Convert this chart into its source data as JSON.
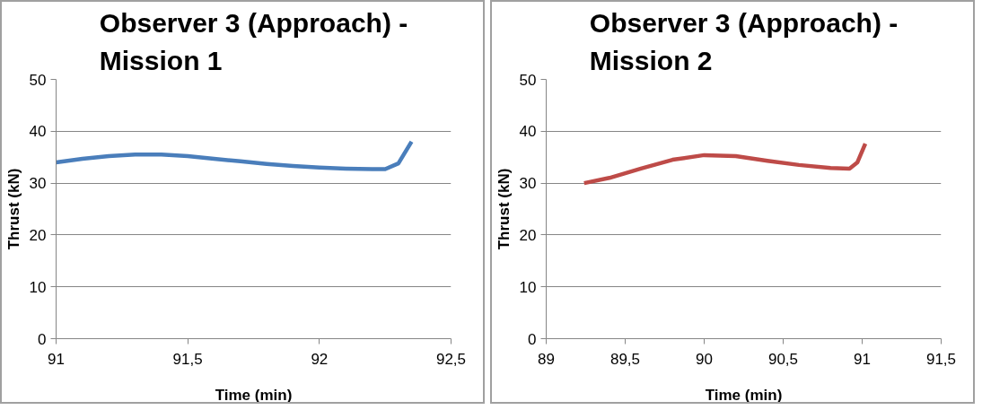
{
  "chart_data": [
    {
      "type": "line",
      "title": "Observer 3 (Approach) - Mission 1",
      "xlabel": "Time (min)",
      "ylabel": "Thrust (kN)",
      "xlim": [
        91,
        92.5
      ],
      "xticks": [
        {
          "value": 91,
          "label": "91"
        },
        {
          "value": 91.5,
          "label": "91,5"
        },
        {
          "value": 92,
          "label": "92"
        },
        {
          "value": 92.5,
          "label": "92,5"
        }
      ],
      "ylim": [
        0,
        50
      ],
      "yticks": [
        0,
        10,
        20,
        30,
        40,
        50
      ],
      "grid": "y",
      "marker": "none",
      "line_style": "solid",
      "series": [
        {
          "color": "#4a7ebb",
          "x": [
            91,
            91.1,
            91.2,
            91.3,
            91.4,
            91.5,
            91.6,
            91.7,
            91.8,
            91.9,
            92,
            92.1,
            92.2,
            92.25,
            92.3,
            92.35
          ],
          "values": [
            34,
            34.7,
            35.2,
            35.5,
            35.5,
            35.2,
            34.7,
            34.2,
            33.7,
            33.3,
            33,
            32.8,
            32.7,
            32.7,
            33.8,
            38
          ]
        }
      ]
    },
    {
      "type": "line",
      "title": "Observer 3 (Approach) - Mission 2",
      "xlabel": "Time (min)",
      "ylabel": "Thrust (kN)",
      "xlim": [
        89,
        91.5
      ],
      "xticks": [
        {
          "value": 89,
          "label": "89"
        },
        {
          "value": 89.5,
          "label": "89,5"
        },
        {
          "value": 90,
          "label": "90"
        },
        {
          "value": 90.5,
          "label": "90,5"
        },
        {
          "value": 91,
          "label": "91"
        },
        {
          "value": 91.5,
          "label": "91,5"
        }
      ],
      "ylim": [
        0,
        50
      ],
      "yticks": [
        0,
        10,
        20,
        30,
        40,
        50
      ],
      "grid": "y",
      "marker": "none",
      "line_style": "solid",
      "series": [
        {
          "color": "#be4b48",
          "x": [
            89.24,
            89.4,
            89.6,
            89.8,
            90,
            90.2,
            90.4,
            90.6,
            90.8,
            90.92,
            90.97,
            91.02
          ],
          "values": [
            30,
            31,
            32.8,
            34.5,
            35.4,
            35.2,
            34.3,
            33.5,
            32.9,
            32.8,
            34,
            37.6
          ]
        }
      ]
    }
  ]
}
